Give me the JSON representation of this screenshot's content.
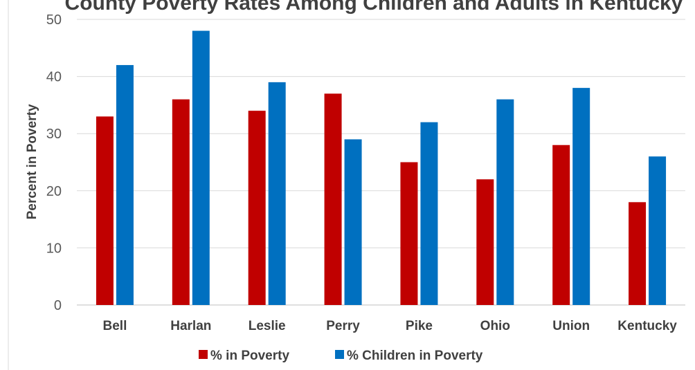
{
  "chart_data": {
    "type": "bar",
    "title": "County Poverty Rates Among Children and Adults in Kentucky",
    "xlabel": "",
    "ylabel": "Percent in Poverty",
    "ylim": [
      0,
      50
    ],
    "yticks": [
      0,
      10,
      20,
      30,
      40,
      50
    ],
    "grid": true,
    "legend_position": "bottom",
    "categories": [
      "Bell",
      "Harlan",
      "Leslie",
      "Perry",
      "Pike",
      "Ohio",
      "Union",
      "Kentucky"
    ],
    "series": [
      {
        "name": "% in Poverty",
        "color": "#C00000",
        "values": [
          33,
          36,
          34,
          37,
          25,
          22,
          28,
          18
        ]
      },
      {
        "name": "% Children in Poverty",
        "color": "#0070C0",
        "values": [
          42,
          48,
          39,
          29,
          32,
          36,
          38,
          26
        ]
      }
    ]
  }
}
